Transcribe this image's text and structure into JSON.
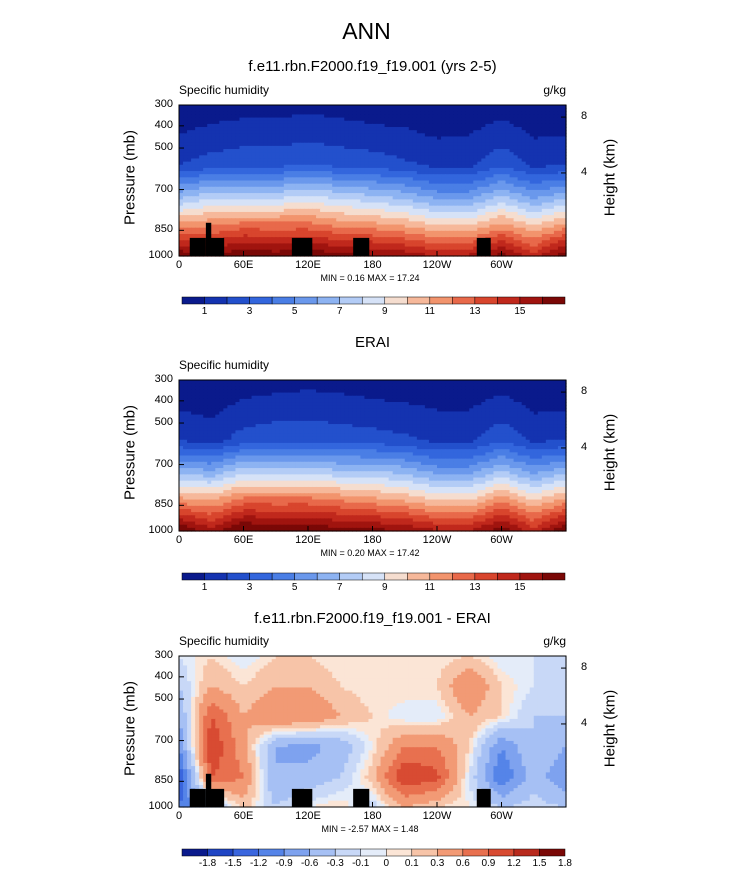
{
  "figure": {
    "title": "ANN"
  },
  "panels": [
    {
      "title": "f.e11.rbn.F2000.f19_f19.001 (yrs 2-5)",
      "var_label": "Specific humidity",
      "units": "g/kg",
      "stats": "MIN =  0.16  MAX =  17.24",
      "ylabel": "Pressure (mb)",
      "y2label": "Height (km)",
      "yticks": [
        "300",
        "400",
        "500",
        "700",
        "850",
        "1000"
      ],
      "xticks": [
        "0",
        "60E",
        "120E",
        "180",
        "120W",
        "60W"
      ],
      "hticks": [
        "8",
        "4"
      ],
      "colorbar_labels": [
        "1",
        "3",
        "5",
        "7",
        "9",
        "11",
        "13",
        "15"
      ]
    },
    {
      "title": "ERAI",
      "var_label": "Specific humidity",
      "units": "",
      "stats": "MIN =  0.20  MAX =  17.42",
      "ylabel": "Pressure (mb)",
      "y2label": "Height (km)",
      "yticks": [
        "300",
        "400",
        "500",
        "700",
        "850",
        "1000"
      ],
      "xticks": [
        "0",
        "60E",
        "120E",
        "180",
        "120W",
        "60W"
      ],
      "hticks": [
        "8",
        "4"
      ],
      "colorbar_labels": [
        "1",
        "3",
        "5",
        "7",
        "9",
        "11",
        "13",
        "15"
      ]
    },
    {
      "title": "f.e11.rbn.F2000.f19_f19.001 - ERAI",
      "var_label": "Specific humidity",
      "units": "g/kg",
      "stats": "MIN = -2.57  MAX =  1.48",
      "ylabel": "Pressure (mb)",
      "y2label": "Height (km)",
      "yticks": [
        "300",
        "400",
        "500",
        "700",
        "850",
        "1000"
      ],
      "xticks": [
        "0",
        "60E",
        "120E",
        "180",
        "120W",
        "60W"
      ],
      "hticks": [
        "8",
        "4"
      ],
      "colorbar_labels": [
        "-1.8",
        "-1.5",
        "-1.2",
        "-0.9",
        "-0.6",
        "-0.3",
        "-0.1",
        "0",
        "0.1",
        "0.3",
        "0.6",
        "0.9",
        "1.2",
        "1.5",
        "1.8"
      ]
    }
  ],
  "colors": {
    "full": [
      "#0a1a8c",
      "#1433b0",
      "#2350cc",
      "#3366dd",
      "#4a7ee5",
      "#6a98ec",
      "#8db3f2",
      "#b3ccf6",
      "#d6e2f7",
      "#f5ddcf",
      "#f6b89a",
      "#f2946d",
      "#e8694a",
      "#d8452d",
      "#c0281c",
      "#a0140f",
      "#7a0806"
    ],
    "diff": [
      "#0a1a8c",
      "#1f45c4",
      "#3a66de",
      "#5584e8",
      "#7ea2ef",
      "#a6c0f4",
      "#c8d8f7",
      "#e4ecf9",
      "#fbe5d6",
      "#f7c4a8",
      "#f29a75",
      "#e8704f",
      "#d84b32",
      "#b82a1d",
      "#7a0806"
    ]
  },
  "chart_data": [
    {
      "type": "heatmap",
      "title": "f.e11.rbn.F2000.f19_f19.001 (yrs 2-5)",
      "subtitle": "Specific humidity",
      "units": "g/kg",
      "xlabel": "",
      "ylabel": "Pressure (mb)",
      "y2label": "Height (km)",
      "x": [
        0,
        30,
        60,
        90,
        120,
        150,
        180,
        210,
        240,
        270,
        300,
        330,
        360
      ],
      "y": [
        1000,
        850,
        700,
        500,
        400,
        300
      ],
      "z": [
        [
          17.0,
          16.0,
          17.2,
          16.6,
          17.0,
          16.5,
          16.2,
          15.8,
          15.0,
          15.2,
          16.5,
          14.5,
          17.0
        ],
        [
          11.5,
          12.0,
          12.5,
          12.5,
          12.5,
          11.8,
          11.5,
          11.0,
          10.0,
          10.0,
          11.5,
          10.0,
          11.5
        ],
        [
          6.5,
          7.5,
          7.5,
          7.5,
          8.0,
          7.5,
          7.0,
          6.5,
          5.5,
          5.5,
          7.0,
          5.5,
          6.5
        ],
        [
          2.0,
          2.5,
          2.8,
          2.8,
          3.0,
          2.8,
          2.6,
          2.2,
          1.8,
          1.8,
          2.8,
          1.8,
          2.0
        ],
        [
          1.0,
          1.3,
          1.5,
          1.5,
          1.7,
          1.5,
          1.3,
          1.2,
          0.9,
          1.0,
          1.5,
          0.9,
          1.0
        ],
        [
          0.4,
          0.5,
          0.6,
          0.6,
          0.7,
          0.6,
          0.5,
          0.4,
          0.3,
          0.3,
          0.6,
          0.3,
          0.4
        ]
      ],
      "levels": [
        1,
        2,
        3,
        4,
        5,
        6,
        7,
        8,
        9,
        10,
        11,
        12,
        13,
        14,
        15,
        16
      ],
      "min": 0.16,
      "max": 17.24
    },
    {
      "type": "heatmap",
      "title": "ERAI",
      "subtitle": "Specific humidity",
      "xlabel": "",
      "ylabel": "Pressure (mb)",
      "y2label": "Height (km)",
      "x": [
        0,
        30,
        60,
        90,
        120,
        150,
        180,
        210,
        240,
        270,
        300,
        330,
        360
      ],
      "y": [
        1000,
        850,
        700,
        500,
        400,
        300
      ],
      "z": [
        [
          17.2,
          15.5,
          17.4,
          16.8,
          17.0,
          16.5,
          16.4,
          16.0,
          15.2,
          15.0,
          16.8,
          14.5,
          17.2
        ],
        [
          11.5,
          11.0,
          12.5,
          12.5,
          12.5,
          12.0,
          11.5,
          11.0,
          10.0,
          10.0,
          12.0,
          10.0,
          11.5
        ],
        [
          6.5,
          6.0,
          7.5,
          7.5,
          7.5,
          7.0,
          7.0,
          6.5,
          5.5,
          5.5,
          7.0,
          5.5,
          6.5
        ],
        [
          2.0,
          1.5,
          2.5,
          2.8,
          2.8,
          2.6,
          2.5,
          2.2,
          1.8,
          1.8,
          2.8,
          1.8,
          2.0
        ],
        [
          1.0,
          0.8,
          1.3,
          1.5,
          1.6,
          1.5,
          1.3,
          1.2,
          1.0,
          1.0,
          1.5,
          0.9,
          1.0
        ],
        [
          0.4,
          0.3,
          0.5,
          0.6,
          0.7,
          0.6,
          0.5,
          0.4,
          0.3,
          0.3,
          0.6,
          0.3,
          0.4
        ]
      ],
      "levels": [
        1,
        2,
        3,
        4,
        5,
        6,
        7,
        8,
        9,
        10,
        11,
        12,
        13,
        14,
        15,
        16
      ],
      "min": 0.2,
      "max": 17.42
    },
    {
      "type": "heatmap",
      "title": "f.e11.rbn.F2000.f19_f19.001 - ERAI",
      "subtitle": "Specific humidity",
      "units": "g/kg",
      "xlabel": "",
      "ylabel": "Pressure (mb)",
      "y2label": "Height (km)",
      "x": [
        0,
        30,
        60,
        90,
        120,
        150,
        180,
        210,
        240,
        270,
        300,
        330,
        360
      ],
      "y": [
        1000,
        850,
        700,
        500,
        400,
        300
      ],
      "z": [
        [
          -1.2,
          -0.5,
          0.2,
          -0.3,
          0.0,
          0.1,
          -0.2,
          0.3,
          0.1,
          0.0,
          -0.3,
          -0.2,
          -0.3
        ],
        [
          -1.5,
          0.9,
          0.6,
          -0.6,
          -0.5,
          -0.3,
          0.2,
          1.2,
          1.0,
          -0.1,
          -1.2,
          -0.4,
          -0.9
        ],
        [
          -0.9,
          1.2,
          0.4,
          -0.6,
          -0.7,
          -0.5,
          0.0,
          0.6,
          0.6,
          0.1,
          -0.9,
          -0.3,
          -0.6
        ],
        [
          -0.6,
          0.9,
          0.3,
          0.6,
          0.6,
          0.3,
          0.1,
          -0.1,
          -0.1,
          0.3,
          0.1,
          -0.3,
          -0.3
        ],
        [
          -0.3,
          0.3,
          0.1,
          0.3,
          0.3,
          0.1,
          0.0,
          0.1,
          0.1,
          0.6,
          0.1,
          -0.1,
          -0.3
        ],
        [
          -0.1,
          0.1,
          -0.1,
          0.1,
          0.1,
          0.0,
          0.0,
          0.0,
          0.0,
          0.1,
          -0.1,
          -0.1,
          -0.1
        ]
      ],
      "levels": [
        -1.8,
        -1.5,
        -1.2,
        -0.9,
        -0.6,
        -0.3,
        -0.1,
        0,
        0.1,
        0.3,
        0.6,
        0.9,
        1.2,
        1.5,
        1.8
      ],
      "min": -2.57,
      "max": 1.48
    }
  ]
}
